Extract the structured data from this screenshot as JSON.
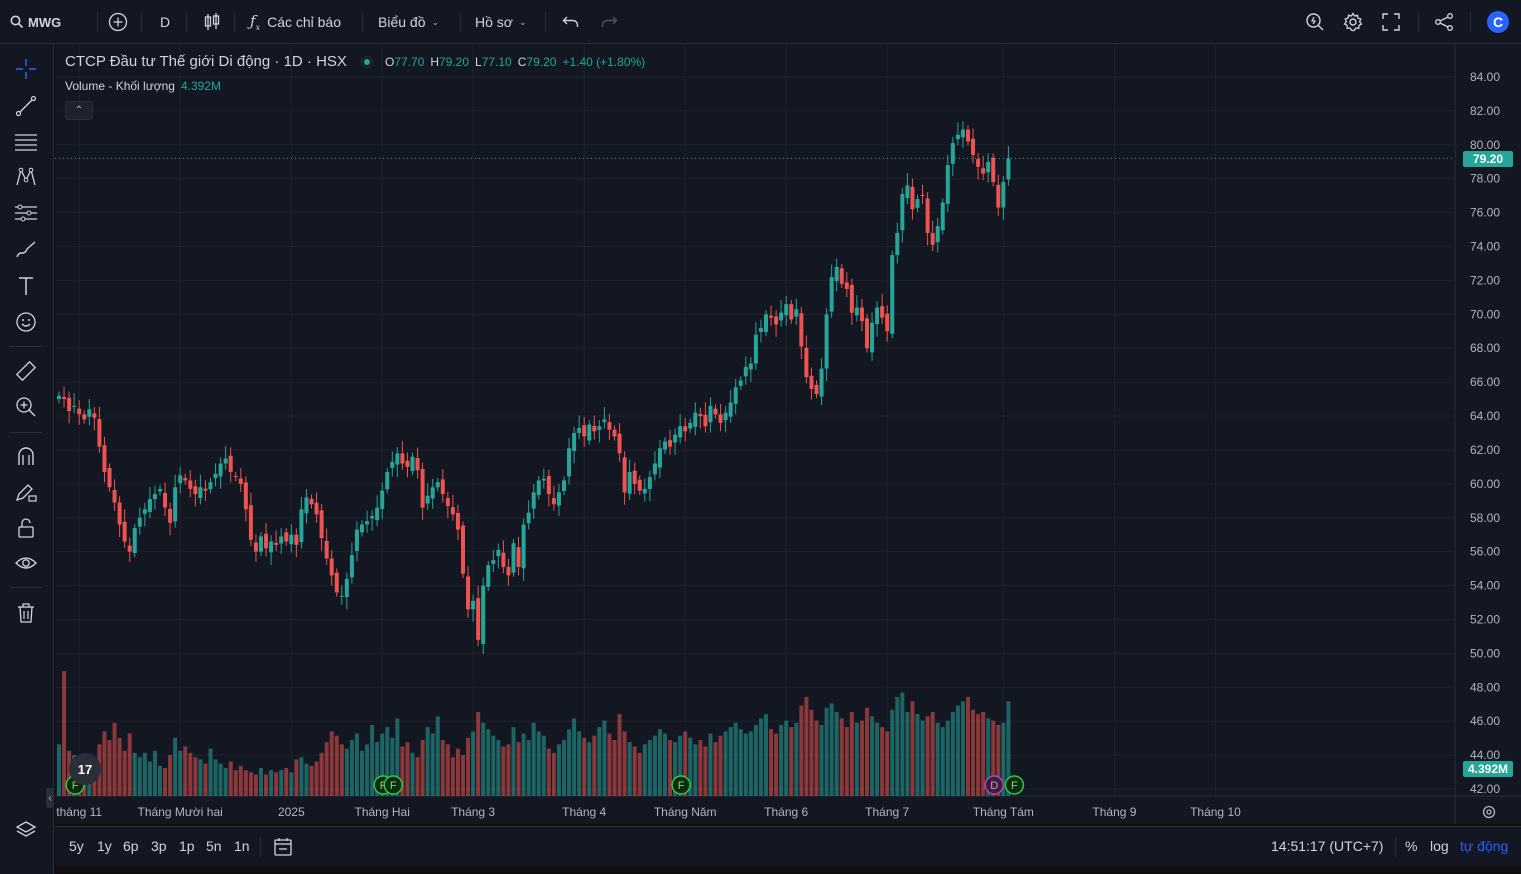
{
  "toolbar": {
    "symbol": "MWG",
    "interval": "D",
    "indicators_label": "Các chỉ báo",
    "chart_label": "Biểu đồ",
    "profile_label": "Hồ sơ",
    "logo_letter": "C"
  },
  "legend": {
    "title": "CTCP Đầu tư Thế giới Di động · 1D · HSX",
    "o_key": "O",
    "o_val": "77.70",
    "h_key": "H",
    "h_val": "79.20",
    "l_key": "L",
    "l_val": "77.10",
    "c_key": "C",
    "c_val": "79.20",
    "change": "+1.40 (+1.80%)",
    "volume_label": "Volume - Khối lượng",
    "volume_value": "4.392M"
  },
  "price_badge": "79.20",
  "volume_badge": "4.392M",
  "tv_logo": "17",
  "bottom": {
    "ranges": [
      "5y",
      "1y",
      "6p",
      "3p",
      "1p",
      "5n",
      "1n"
    ],
    "time": "14:51:17 (UTC+7)",
    "percent": "%",
    "log": "log",
    "auto": "tự động"
  },
  "colors": {
    "up": "#26a69a",
    "down": "#ef5350",
    "bg": "#131722",
    "grid": "#1e222d",
    "accent": "#2962ff"
  },
  "chart_data": {
    "type": "candlestick",
    "title": "CTCP Đầu tư Thế giới Di động · 1D · HSX",
    "y_ticks": [
      "84.00",
      "82.00",
      "80.00",
      "78.00",
      "76.00",
      "74.00",
      "72.00",
      "70.00",
      "68.00",
      "66.00",
      "64.00",
      "62.00",
      "60.00",
      "58.00",
      "56.00",
      "54.00",
      "52.00",
      "50.00",
      "48.00",
      "46.00",
      "44.00",
      "42.00"
    ],
    "ylim": [
      41.0,
      85.0
    ],
    "x_ticks": [
      {
        "label": "tháng 11",
        "i": 4
      },
      {
        "label": "Tháng Mười hai",
        "i": 24
      },
      {
        "label": "2025",
        "i": 46
      },
      {
        "label": "Tháng Hai",
        "i": 64
      },
      {
        "label": "Tháng 3",
        "i": 82
      },
      {
        "label": "Tháng 4",
        "i": 104
      },
      {
        "label": "Tháng Năm",
        "i": 124
      },
      {
        "label": "Tháng 6",
        "i": 144
      },
      {
        "label": "Tháng 7",
        "i": 164
      },
      {
        "label": "Tháng Tám",
        "i": 187
      },
      {
        "label": "Tháng 9",
        "i": 209
      },
      {
        "label": "Tháng 10",
        "i": 229
      }
    ],
    "events": [
      {
        "letter": "F",
        "i": 2
      },
      {
        "letter": "F",
        "i": 63
      },
      {
        "letter": "F",
        "i": 65
      },
      {
        "letter": "F",
        "i": 122
      },
      {
        "letter": "D",
        "i": 184
      },
      {
        "letter": "F",
        "i": 188
      }
    ],
    "close": [
      65.2,
      65.0,
      64.3,
      64.6,
      64.1,
      63.8,
      64.4,
      63.9,
      62.2,
      60.7,
      59.8,
      58.9,
      57.6,
      56.6,
      56.0,
      57.4,
      58.0,
      58.5,
      59.1,
      59.4,
      59.7,
      58.6,
      57.7,
      59.8,
      60.5,
      60.2,
      59.7,
      59.4,
      59.8,
      59.6,
      60.1,
      60.6,
      61.2,
      61.5,
      60.7,
      60.4,
      60.0,
      58.5,
      56.7,
      56.0,
      56.9,
      56.2,
      56.6,
      56.4,
      56.9,
      56.6,
      57.0,
      56.4,
      58.5,
      59.2,
      58.8,
      58.2,
      56.8,
      55.6,
      54.6,
      53.6,
      53.4,
      54.4,
      55.8,
      57.3,
      57.6,
      57.8,
      58.1,
      58.6,
      59.6,
      60.7,
      61.3,
      61.8,
      61.2,
      61.0,
      61.6,
      60.8,
      58.6,
      59.3,
      59.8,
      60.1,
      59.4,
      58.7,
      58.2,
      57.3,
      54.7,
      52.6,
      53.1,
      50.8,
      54.0,
      55.2,
      55.5,
      56.1,
      55.1,
      54.6,
      56.5,
      55.1,
      57.6,
      58.3,
      59.5,
      60.2,
      60.3,
      59.4,
      58.8,
      59.5,
      60.2,
      62.1,
      63.0,
      63.3,
      62.8,
      63.5,
      63.1,
      63.4,
      63.8,
      63.2,
      62.8,
      61.8,
      59.5,
      60.7,
      60.0,
      59.6,
      59.7,
      60.4,
      61.2,
      62.1,
      62.5,
      62.2,
      62.9,
      63.4,
      63.1,
      63.6,
      64.2,
      64.0,
      63.4,
      64.6,
      64.1,
      63.6,
      64.2,
      64.8,
      65.7,
      66.1,
      66.9,
      67.1,
      68.8,
      69.2,
      70.0,
      69.8,
      69.4,
      70.1,
      70.6,
      69.7,
      70.3,
      68.1,
      66.3,
      65.6,
      65.3,
      66.8,
      70.0,
      72.2,
      72.8,
      71.8,
      71.5,
      70.1,
      70.4,
      69.6,
      68.0,
      69.5,
      70.4,
      69.8,
      69.0,
      73.5,
      74.8,
      77.1,
      77.6,
      76.2,
      76.8,
      77.0,
      74.8,
      74.1,
      75.2,
      76.6,
      78.8,
      80.1,
      80.6,
      80.9,
      80.2,
      79.4,
      78.7,
      78.3,
      79.0,
      77.8,
      76.3,
      77.8,
      79.2
    ],
    "ohlc_note": "open/high/low derived from close per bar",
    "volume_millions": [
      2.4,
      5.8,
      2.1,
      1.9,
      1.7,
      1.6,
      1.8,
      1.5,
      2.4,
      3.0,
      2.6,
      3.4,
      2.7,
      2.1,
      2.9,
      2.0,
      1.8,
      2.0,
      1.6,
      2.1,
      1.4,
      1.3,
      1.9,
      2.7,
      2.1,
      2.3,
      2.0,
      1.8,
      1.7,
      1.5,
      2.2,
      1.7,
      1.5,
      1.3,
      1.6,
      1.2,
      1.4,
      1.2,
      1.1,
      1.0,
      1.3,
      1.0,
      1.2,
      1.1,
      1.2,
      1.3,
      1.1,
      1.7,
      1.8,
      1.5,
      1.4,
      1.6,
      2.0,
      2.5,
      3.0,
      2.8,
      2.4,
      2.2,
      2.6,
      2.9,
      2.1,
      2.4,
      3.3,
      2.5,
      2.9,
      3.2,
      2.7,
      3.6,
      2.3,
      2.5,
      2.0,
      1.8,
      2.6,
      3.2,
      2.9,
      3.7,
      2.6,
      2.4,
      1.8,
      2.2,
      1.9,
      2.7,
      3.0,
      3.9,
      3.4,
      3.1,
      2.8,
      2.6,
      2.3,
      2.4,
      3.2,
      2.5,
      2.9,
      2.6,
      3.4,
      3.0,
      2.8,
      2.2,
      2.0,
      2.4,
      2.6,
      3.1,
      3.6,
      3.0,
      2.7,
      2.5,
      2.8,
      3.2,
      3.5,
      2.9,
      2.6,
      3.8,
      3.0,
      2.5,
      2.3,
      2.0,
      2.4,
      2.6,
      2.8,
      3.1,
      2.9,
      2.6,
      2.5,
      2.8,
      3.0,
      2.7,
      2.4,
      2.6,
      2.3,
      2.9,
      2.5,
      2.8,
      3.0,
      3.2,
      3.4,
      3.1,
      2.9,
      3.0,
      3.3,
      3.6,
      3.8,
      3.1,
      2.9,
      3.3,
      3.5,
      3.2,
      3.4,
      4.2,
      4.6,
      4.0,
      3.5,
      3.3,
      4.1,
      4.3,
      3.9,
      3.6,
      3.2,
      3.9,
      3.4,
      3.5,
      4.1,
      3.7,
      3.4,
      3.2,
      3.0,
      4.0,
      4.6,
      4.8,
      3.9,
      4.4,
      3.8,
      3.5,
      3.7,
      3.9,
      3.4,
      3.2,
      3.5,
      3.9,
      4.2,
      4.4,
      4.6,
      4.0,
      3.8,
      3.9,
      3.6,
      3.5,
      3.3,
      3.4,
      4.392
    ]
  }
}
